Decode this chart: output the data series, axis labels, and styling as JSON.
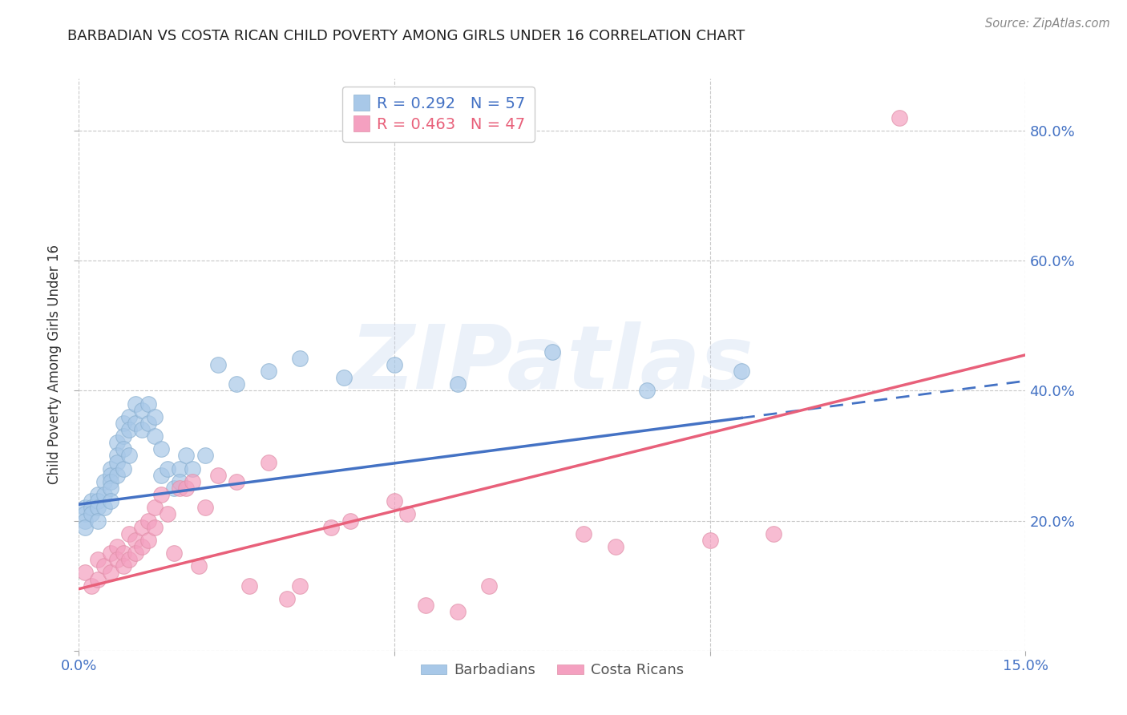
{
  "title": "BARBADIAN VS COSTA RICAN CHILD POVERTY AMONG GIRLS UNDER 16 CORRELATION CHART",
  "source": "Source: ZipAtlas.com",
  "ylabel": "Child Poverty Among Girls Under 16",
  "xlim": [
    0.0,
    0.15
  ],
  "ylim": [
    0.0,
    0.88
  ],
  "blue_R": 0.292,
  "blue_N": 57,
  "pink_R": 0.463,
  "pink_N": 47,
  "blue_color": "#a8c8e8",
  "pink_color": "#f4a0c0",
  "blue_line_color": "#4472c4",
  "pink_line_color": "#e8607a",
  "axis_label_color": "#4472c4",
  "grid_color": "#c8c8c8",
  "background_color": "#ffffff",
  "watermark": "ZIPatlas",
  "blue_line_x0": 0.0,
  "blue_line_y0": 0.225,
  "blue_line_x1": 0.15,
  "blue_line_y1": 0.415,
  "blue_line_solid_end": 0.105,
  "pink_line_x0": 0.0,
  "pink_line_y0": 0.095,
  "pink_line_x1": 0.15,
  "pink_line_y1": 0.455,
  "blue_scatter_x": [
    0.001,
    0.001,
    0.001,
    0.001,
    0.002,
    0.002,
    0.002,
    0.003,
    0.003,
    0.003,
    0.003,
    0.004,
    0.004,
    0.004,
    0.005,
    0.005,
    0.005,
    0.005,
    0.005,
    0.006,
    0.006,
    0.006,
    0.006,
    0.007,
    0.007,
    0.007,
    0.007,
    0.008,
    0.008,
    0.008,
    0.009,
    0.009,
    0.01,
    0.01,
    0.011,
    0.011,
    0.012,
    0.012,
    0.013,
    0.013,
    0.014,
    0.015,
    0.016,
    0.016,
    0.017,
    0.018,
    0.02,
    0.022,
    0.025,
    0.03,
    0.035,
    0.042,
    0.05,
    0.06,
    0.075,
    0.09,
    0.105
  ],
  "blue_scatter_y": [
    0.22,
    0.21,
    0.2,
    0.19,
    0.23,
    0.22,
    0.21,
    0.24,
    0.23,
    0.22,
    0.2,
    0.26,
    0.24,
    0.22,
    0.28,
    0.27,
    0.26,
    0.25,
    0.23,
    0.32,
    0.3,
    0.29,
    0.27,
    0.35,
    0.33,
    0.31,
    0.28,
    0.36,
    0.34,
    0.3,
    0.38,
    0.35,
    0.37,
    0.34,
    0.38,
    0.35,
    0.36,
    0.33,
    0.31,
    0.27,
    0.28,
    0.25,
    0.28,
    0.26,
    0.3,
    0.28,
    0.3,
    0.44,
    0.41,
    0.43,
    0.45,
    0.42,
    0.44,
    0.41,
    0.46,
    0.4,
    0.43
  ],
  "pink_scatter_x": [
    0.001,
    0.002,
    0.003,
    0.003,
    0.004,
    0.005,
    0.005,
    0.006,
    0.006,
    0.007,
    0.007,
    0.008,
    0.008,
    0.009,
    0.009,
    0.01,
    0.01,
    0.011,
    0.011,
    0.012,
    0.012,
    0.013,
    0.014,
    0.015,
    0.016,
    0.017,
    0.018,
    0.019,
    0.02,
    0.022,
    0.025,
    0.027,
    0.03,
    0.033,
    0.035,
    0.04,
    0.043,
    0.05,
    0.052,
    0.055,
    0.06,
    0.065,
    0.08,
    0.085,
    0.1,
    0.11,
    0.13
  ],
  "pink_scatter_y": [
    0.12,
    0.1,
    0.14,
    0.11,
    0.13,
    0.15,
    0.12,
    0.16,
    0.14,
    0.15,
    0.13,
    0.18,
    0.14,
    0.17,
    0.15,
    0.19,
    0.16,
    0.2,
    0.17,
    0.22,
    0.19,
    0.24,
    0.21,
    0.15,
    0.25,
    0.25,
    0.26,
    0.13,
    0.22,
    0.27,
    0.26,
    0.1,
    0.29,
    0.08,
    0.1,
    0.19,
    0.2,
    0.23,
    0.21,
    0.07,
    0.06,
    0.1,
    0.18,
    0.16,
    0.17,
    0.18,
    0.82
  ]
}
